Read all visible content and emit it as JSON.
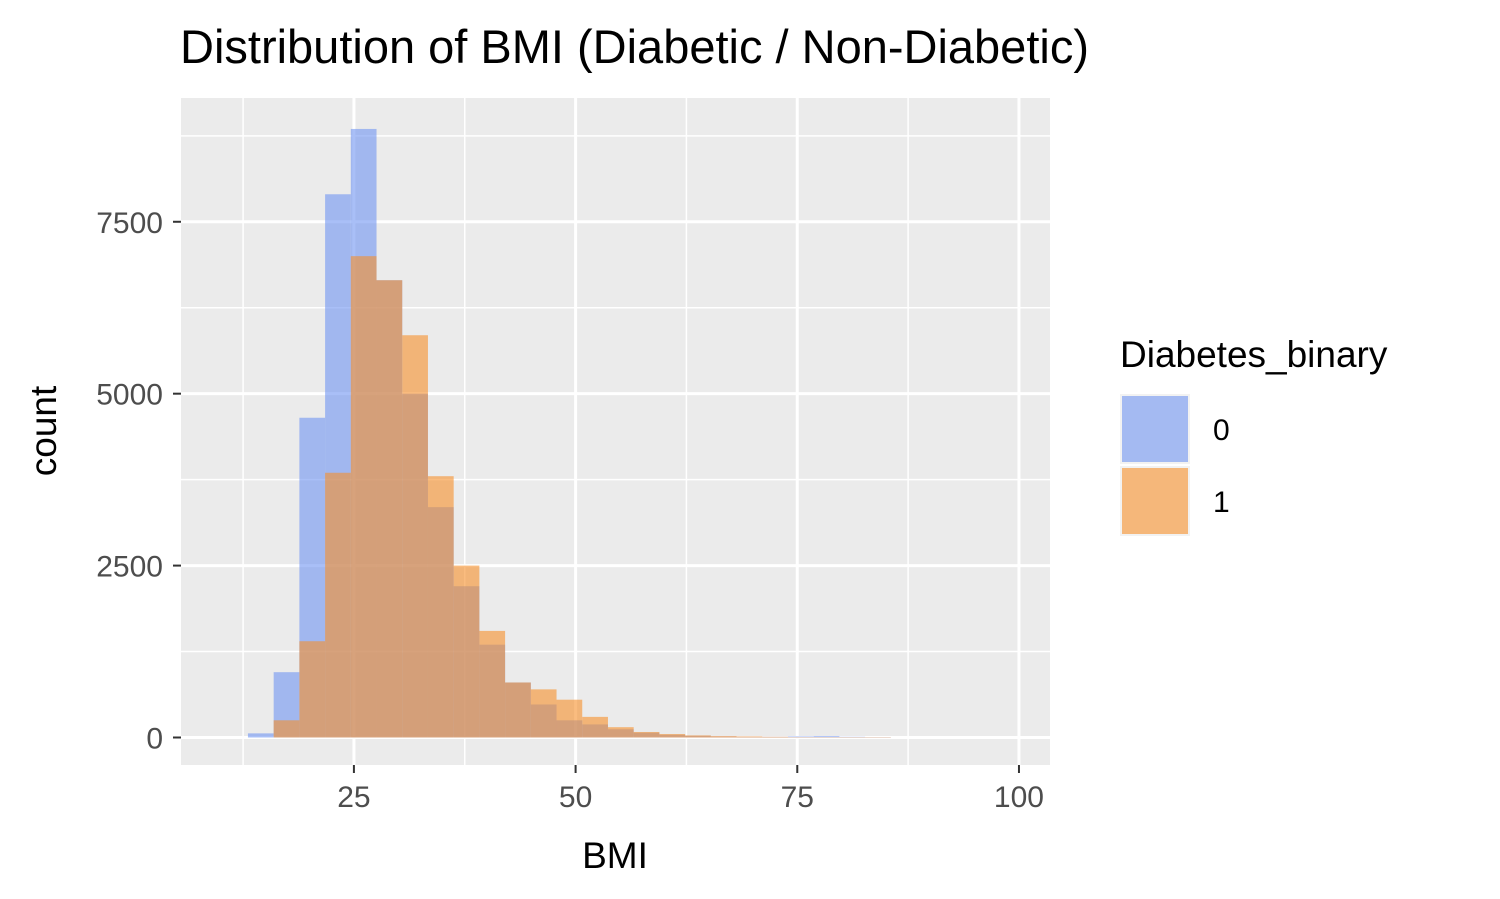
{
  "chart_data": {
    "type": "bar",
    "subtype": "histogram",
    "title": "Distribution of BMI (Diabetic / Non-Diabetic)",
    "xlabel": "BMI",
    "ylabel": "count",
    "xlim": [
      5.5,
      103.5
    ],
    "ylim": [
      -400,
      9300
    ],
    "x_ticks": [
      25,
      50,
      75,
      100
    ],
    "y_ticks": [
      0,
      2500,
      5000,
      7500
    ],
    "x_tick_labels": [
      "25",
      "50",
      "75",
      "100"
    ],
    "y_tick_labels": [
      "0",
      "2500",
      "5000",
      "7500"
    ],
    "grid": true,
    "bin_width": 2.9,
    "bin_centers": [
      14.5,
      17.4,
      20.3,
      23.2,
      26.1,
      29.0,
      31.9,
      34.8,
      37.7,
      40.6,
      43.5,
      46.4,
      49.3,
      52.2,
      55.1,
      58.0,
      60.9,
      63.8,
      66.7,
      69.6,
      72.5,
      75.4,
      78.3,
      81.2,
      84.1
    ],
    "series": [
      {
        "name": "0",
        "color": "#6F94F1",
        "alpha": 0.6,
        "values": [
          60,
          950,
          4650,
          7900,
          8850,
          6650,
          5000,
          3350,
          2200,
          1350,
          800,
          480,
          250,
          190,
          120,
          70,
          40,
          25,
          15,
          10,
          10,
          15,
          20,
          10,
          5
        ]
      },
      {
        "name": "1",
        "color": "#F68F2A",
        "alpha": 0.6,
        "values": [
          0,
          250,
          1400,
          3850,
          7000,
          6650,
          5850,
          3800,
          2500,
          1550,
          800,
          700,
          550,
          300,
          150,
          80,
          50,
          30,
          20,
          15,
          10,
          5,
          5,
          5,
          5
        ]
      }
    ],
    "legend": {
      "title": "Diabetes_binary",
      "position": "right",
      "entries": [
        "0",
        "1"
      ]
    }
  },
  "colors": {
    "panel_background": "#EBEBEB",
    "grid": "#FFFFFF",
    "page_background": "#FFFFFF"
  }
}
